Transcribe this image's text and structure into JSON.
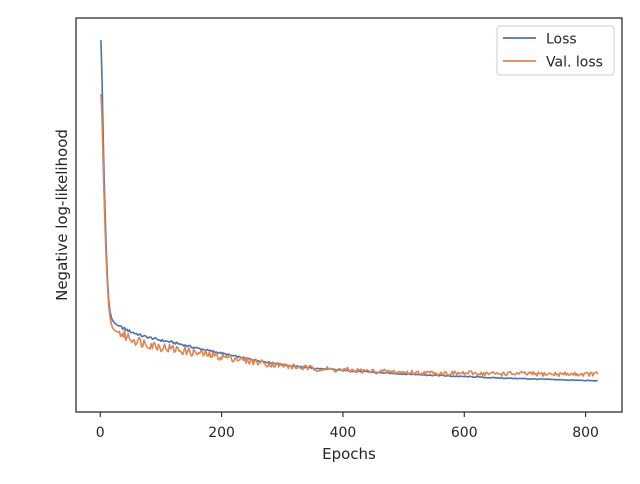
{
  "chart_data": {
    "type": "line",
    "xlabel": "Epochs",
    "ylabel": "Negative log-likelihood",
    "xlim": [
      -40,
      860
    ],
    "xticks": [
      0,
      200,
      400,
      600,
      800
    ],
    "ylim": [
      0,
      1
    ],
    "yticks_labeled": false,
    "grid": false,
    "legend": "top-right",
    "series": [
      {
        "name": "Loss",
        "color": "#4c72b0",
        "x": [
          1,
          2,
          3,
          4,
          5,
          6,
          8,
          10,
          12,
          14,
          16,
          18,
          20,
          22,
          25,
          30,
          35,
          40,
          50,
          60,
          70,
          80,
          100,
          120,
          140,
          160,
          180,
          200,
          220,
          240,
          260,
          280,
          300,
          320,
          340,
          360,
          380,
          400,
          420,
          440,
          460,
          480,
          500,
          520,
          540,
          560,
          580,
          600,
          620,
          640,
          660,
          680,
          700,
          720,
          740,
          760,
          780,
          800,
          820
        ],
        "y": [
          0.98,
          0.93,
          0.86,
          0.78,
          0.7,
          0.62,
          0.5,
          0.39,
          0.31,
          0.255,
          0.225,
          0.21,
          0.2,
          0.196,
          0.19,
          0.184,
          0.18,
          0.176,
          0.168,
          0.162,
          0.156,
          0.152,
          0.144,
          0.138,
          0.13,
          0.122,
          0.115,
          0.108,
          0.1,
          0.094,
          0.088,
          0.082,
          0.076,
          0.072,
          0.068,
          0.065,
          0.063,
          0.06,
          0.058,
          0.056,
          0.054,
          0.052,
          0.05,
          0.049,
          0.047,
          0.046,
          0.044,
          0.043,
          0.042,
          0.04,
          0.039,
          0.038,
          0.037,
          0.036,
          0.035,
          0.034,
          0.033,
          0.032,
          0.031
        ]
      },
      {
        "name": "Val. loss",
        "color": "#dd8452",
        "x": [
          1,
          2,
          3,
          4,
          5,
          6,
          8,
          10,
          12,
          14,
          16,
          18,
          20,
          22,
          25,
          30,
          35,
          40,
          50,
          60,
          70,
          80,
          100,
          120,
          140,
          160,
          180,
          200,
          220,
          240,
          260,
          280,
          300,
          320,
          340,
          360,
          380,
          400,
          420,
          440,
          460,
          480,
          500,
          520,
          540,
          560,
          580,
          600,
          620,
          640,
          660,
          680,
          700,
          720,
          740,
          760,
          780,
          800,
          820
        ],
        "y": [
          0.83,
          0.8,
          0.75,
          0.69,
          0.62,
          0.56,
          0.45,
          0.36,
          0.29,
          0.24,
          0.21,
          0.19,
          0.18,
          0.175,
          0.17,
          0.166,
          0.162,
          0.158,
          0.15,
          0.144,
          0.138,
          0.134,
          0.126,
          0.12,
          0.114,
          0.108,
          0.103,
          0.098,
          0.094,
          0.088,
          0.083,
          0.078,
          0.074,
          0.07,
          0.067,
          0.065,
          0.063,
          0.061,
          0.06,
          0.058,
          0.057,
          0.056,
          0.055,
          0.054,
          0.053,
          0.053,
          0.052,
          0.052,
          0.052,
          0.051,
          0.051,
          0.051,
          0.051,
          0.05,
          0.05,
          0.05,
          0.05,
          0.05,
          0.05
        ]
      }
    ]
  }
}
